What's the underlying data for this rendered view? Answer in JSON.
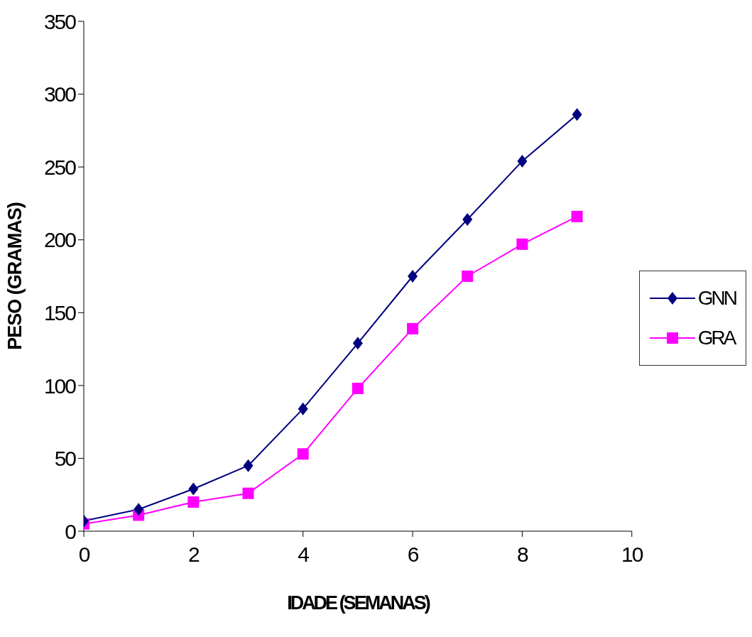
{
  "chart_data": {
    "type": "line",
    "xlabel": "IDADE (SEMANAS)",
    "ylabel": "PESO (GRAMAS)",
    "x": [
      0,
      1,
      2,
      3,
      4,
      5,
      6,
      7,
      8,
      9
    ],
    "series": [
      {
        "name": "GNN",
        "color": "#000080",
        "marker": "diamond",
        "values": [
          7,
          15,
          29,
          45,
          84,
          129,
          175,
          214,
          254,
          286
        ]
      },
      {
        "name": "GRA",
        "color": "#ff00ff",
        "marker": "square",
        "values": [
          5,
          11,
          20,
          26,
          53,
          98,
          139,
          175,
          197,
          216
        ]
      }
    ],
    "xlim": [
      0,
      10
    ],
    "xticks": [
      0,
      2,
      4,
      6,
      8,
      10
    ],
    "ylim": [
      0,
      350
    ],
    "yticks": [
      0,
      50,
      100,
      150,
      200,
      250,
      300,
      350
    ],
    "grid": false,
    "legend": "right",
    "line_style": "solid"
  }
}
